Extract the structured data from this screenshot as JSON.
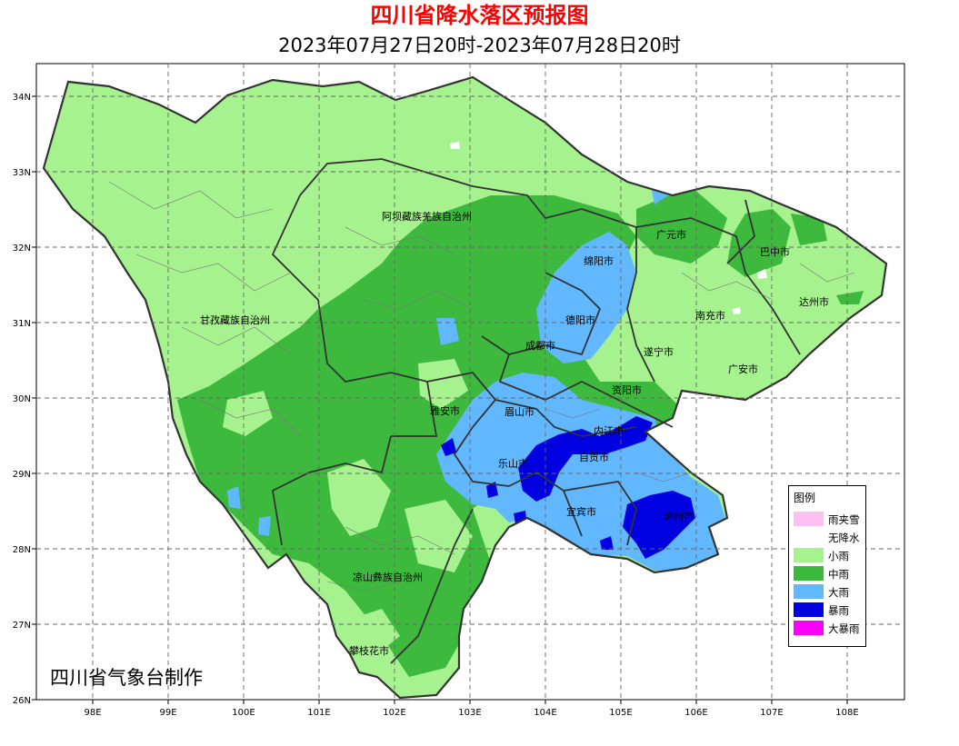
{
  "title": "四川省降水落区预报图",
  "subtitle": "2023年07月27日20时-2023年07月28日20时",
  "credit": "四川省气象台制作",
  "axes": {
    "x_ticks": [
      "98E",
      "99E",
      "100E",
      "101E",
      "102E",
      "103E",
      "104E",
      "105E",
      "106E",
      "107E",
      "108E"
    ],
    "y_ticks": [
      "34N",
      "33N",
      "32N",
      "31N",
      "30N",
      "29N",
      "28N",
      "27N",
      "26N"
    ]
  },
  "legend": {
    "title": "图例",
    "items": [
      {
        "label": "雨夹雪",
        "color": "#ffbff0"
      },
      {
        "label": "无降水",
        "color": "#ffffff"
      },
      {
        "label": "小雨",
        "color": "#a6f28f"
      },
      {
        "label": "中雨",
        "color": "#3dba3d"
      },
      {
        "label": "大雨",
        "color": "#61b8ff"
      },
      {
        "label": "暴雨",
        "color": "#0000e1"
      },
      {
        "label": "大暴雨",
        "color": "#fa00fa"
      }
    ]
  },
  "regions": [
    "阿坝藏族羌族自治州",
    "甘孜藏族自治州",
    "广元市",
    "巴中市",
    "绵阳市",
    "达州市",
    "德阳市",
    "南充市",
    "成都市",
    "遂宁市",
    "广安市",
    "资阳市",
    "雅安市",
    "眉山市",
    "内江市",
    "乐山市",
    "自贡市",
    "宜宾市",
    "泸州市",
    "凉山彝族自治州",
    "攀枝花市"
  ]
}
